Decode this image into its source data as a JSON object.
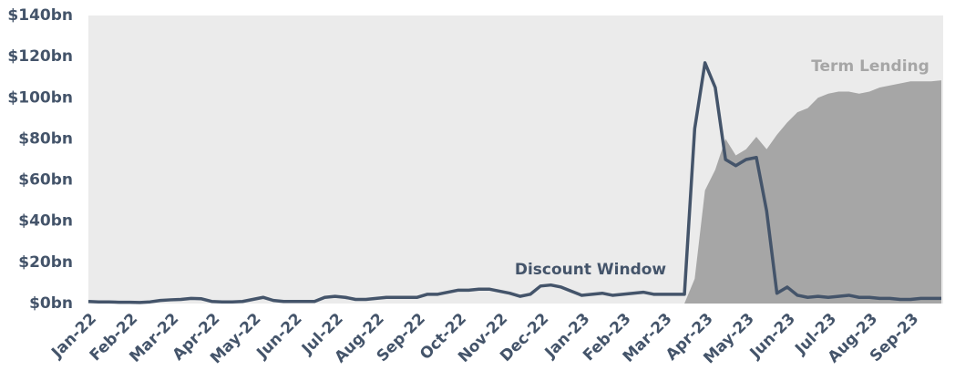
{
  "chart_data": {
    "type": "line-area",
    "categories": [
      "Jan-22",
      null,
      null,
      null,
      "Feb-22",
      null,
      null,
      null,
      "Mar-22",
      null,
      null,
      null,
      "Apr-22",
      null,
      null,
      null,
      "May-22",
      null,
      null,
      null,
      "Jun-22",
      null,
      null,
      null,
      "Jul-22",
      null,
      null,
      null,
      "Aug-22",
      null,
      null,
      null,
      "Sep-22",
      null,
      null,
      null,
      "Oct-22",
      null,
      null,
      null,
      "Nov-22",
      null,
      null,
      null,
      "Dec-22",
      null,
      null,
      null,
      "Jan-23",
      null,
      null,
      null,
      "Feb-23",
      null,
      null,
      null,
      "Mar-23",
      null,
      null,
      null,
      "Apr-23",
      null,
      null,
      null,
      "May-23",
      null,
      null,
      null,
      "Jun-23",
      null,
      null,
      null,
      "Jul-23",
      null,
      null,
      null,
      "Aug-23",
      null,
      null,
      null,
      "Sep-23",
      null,
      null,
      null
    ],
    "series": [
      {
        "name": "Term Lending",
        "kind": "area",
        "color": "#a6a6a6",
        "values": [
          null,
          null,
          null,
          null,
          null,
          null,
          null,
          null,
          null,
          null,
          null,
          null,
          null,
          null,
          null,
          null,
          null,
          null,
          null,
          null,
          null,
          null,
          null,
          null,
          null,
          null,
          null,
          null,
          null,
          null,
          null,
          null,
          null,
          null,
          null,
          null,
          null,
          null,
          null,
          null,
          null,
          null,
          null,
          null,
          null,
          null,
          null,
          null,
          null,
          null,
          null,
          null,
          null,
          null,
          null,
          null,
          null,
          null,
          0,
          12,
          55,
          65,
          80,
          72,
          75,
          81,
          75,
          82,
          88,
          93,
          95,
          100,
          102,
          103,
          103,
          102,
          103,
          105,
          106,
          107,
          108,
          108,
          108,
          108.5
        ]
      },
      {
        "name": "Discount Window",
        "kind": "line",
        "color": "#44546a",
        "values": [
          1,
          0.8,
          0.8,
          0.6,
          0.6,
          0.5,
          0.8,
          1.5,
          1.8,
          2,
          2.5,
          2.3,
          1,
          0.8,
          0.8,
          1,
          2,
          3,
          1.5,
          1,
          1,
          1,
          1,
          3,
          3.5,
          3,
          2,
          2,
          2.5,
          3,
          3,
          3,
          3,
          4.5,
          4.5,
          5.5,
          6.5,
          6.5,
          7,
          7,
          6,
          5,
          3.5,
          4.5,
          8.5,
          9,
          8,
          6,
          4,
          4.5,
          5,
          4,
          4.5,
          5,
          5.5,
          4.5,
          4.5,
          4.5,
          4.5,
          85,
          117,
          105,
          70,
          67,
          70,
          71,
          45,
          5,
          8,
          4,
          3,
          3.5,
          3,
          3.5,
          4,
          3,
          3,
          2.5,
          2.5,
          2,
          2,
          2.5,
          2.5,
          2.5
        ]
      }
    ],
    "ylim": [
      0,
      140
    ],
    "yticks": [
      {
        "value": 0,
        "label": "$0bn"
      },
      {
        "value": 20,
        "label": "$20bn"
      },
      {
        "value": 40,
        "label": "$40bn"
      },
      {
        "value": 60,
        "label": "$60bn"
      },
      {
        "value": 80,
        "label": "$80bn"
      },
      {
        "value": 100,
        "label": "$100bn"
      },
      {
        "value": 120,
        "label": "$120bn"
      },
      {
        "value": 140,
        "label": "$140bn"
      }
    ],
    "plot_background": "#ebebeb"
  }
}
